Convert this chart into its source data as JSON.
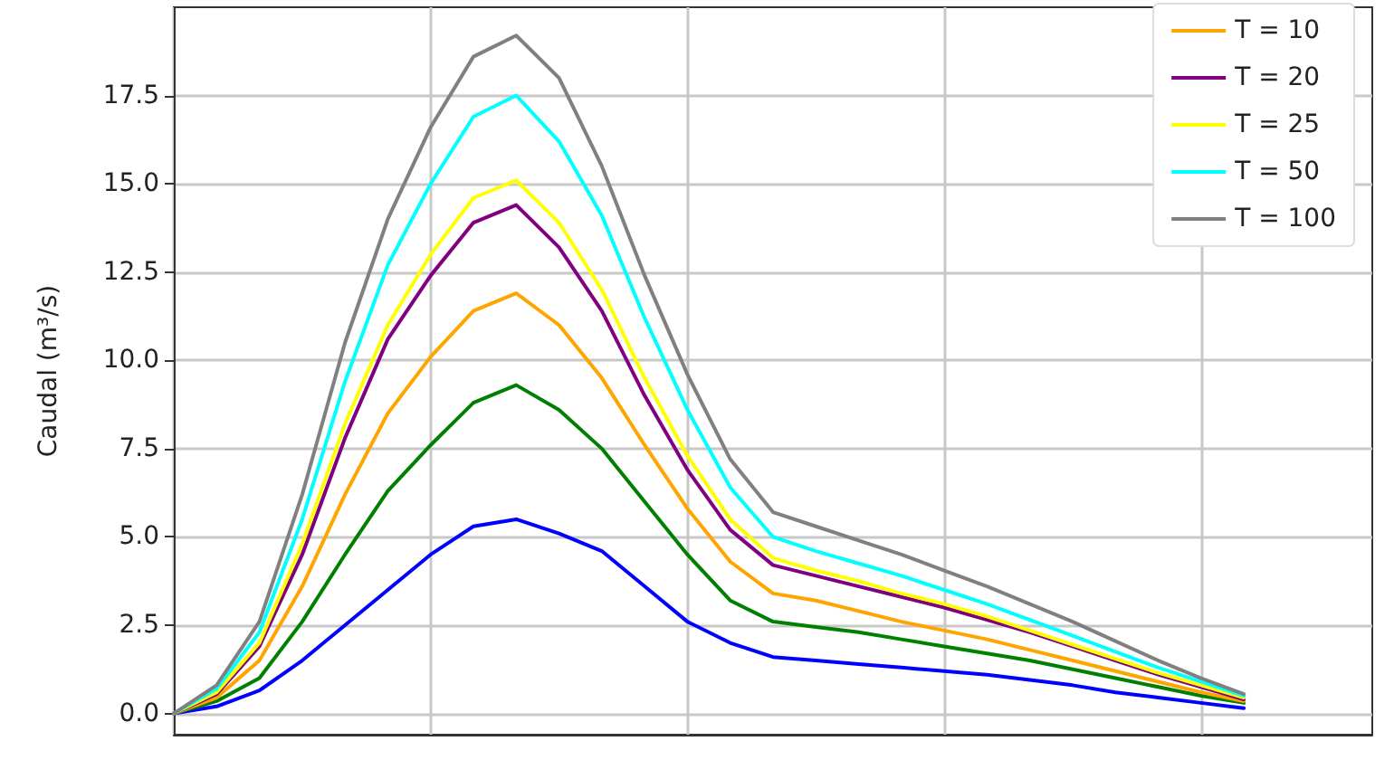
{
  "chart_data": {
    "type": "line",
    "ylabel": "Caudal (m³/s)",
    "categories": [
      null,
      null,
      null,
      null,
      null,
      null,
      null,
      null,
      null,
      null,
      null,
      null,
      null,
      null,
      null,
      null,
      null,
      null,
      null,
      null,
      null,
      null,
      null,
      null,
      null,
      null,
      null,
      null,
      null
    ],
    "series": [
      {
        "color": "#0000ff",
        "values": [
          0,
          0.2,
          0.65,
          1.5,
          2.5,
          3.5,
          4.5,
          5.3,
          5.5,
          5.1,
          4.6,
          3.6,
          2.6,
          2.0,
          1.6,
          1.5,
          1.4,
          1.3,
          1.2,
          1.1,
          0.95,
          0.8,
          0.6,
          0.45,
          0.3,
          0.15,
          null,
          null,
          null
        ]
      },
      {
        "color": "#008000",
        "values": [
          0,
          0.35,
          1.0,
          2.6,
          4.5,
          6.3,
          7.6,
          8.8,
          9.3,
          8.6,
          7.5,
          6.0,
          4.5,
          3.2,
          2.6,
          2.45,
          2.3,
          2.1,
          1.9,
          1.7,
          1.5,
          1.25,
          1.0,
          0.75,
          0.5,
          0.3,
          null,
          null,
          null
        ]
      },
      {
        "name": "T = 10",
        "color": "#ffa500",
        "values": [
          0,
          0.45,
          1.5,
          3.6,
          6.2,
          8.5,
          10.1,
          11.4,
          11.9,
          11.0,
          9.5,
          7.6,
          5.8,
          4.3,
          3.4,
          3.2,
          2.9,
          2.6,
          2.35,
          2.1,
          1.8,
          1.5,
          1.2,
          0.9,
          0.6,
          0.35,
          null,
          null,
          null
        ]
      },
      {
        "name": "T = 20",
        "color": "#800080",
        "values": [
          0,
          0.55,
          1.9,
          4.5,
          7.8,
          10.6,
          12.4,
          13.9,
          14.4,
          13.2,
          11.4,
          9.0,
          6.9,
          5.2,
          4.2,
          3.9,
          3.6,
          3.3,
          3.0,
          2.65,
          2.3,
          1.9,
          1.5,
          1.1,
          0.75,
          0.4,
          null,
          null,
          null
        ]
      },
      {
        "name": "T = 25",
        "color": "#ffff00",
        "values": [
          0,
          0.6,
          2.0,
          4.8,
          8.2,
          11.0,
          13.0,
          14.6,
          15.1,
          13.9,
          12.0,
          9.5,
          7.3,
          5.5,
          4.4,
          4.05,
          3.75,
          3.4,
          3.1,
          2.75,
          2.35,
          1.95,
          1.55,
          1.15,
          0.8,
          0.45,
          null,
          null,
          null
        ]
      },
      {
        "name": "T = 50",
        "color": "#00ffff",
        "values": [
          0,
          0.7,
          2.3,
          5.5,
          9.4,
          12.7,
          15.0,
          16.9,
          17.5,
          16.2,
          14.1,
          11.2,
          8.6,
          6.4,
          5.0,
          4.6,
          4.25,
          3.9,
          3.5,
          3.1,
          2.65,
          2.2,
          1.75,
          1.3,
          0.9,
          0.5,
          null,
          null,
          null
        ]
      },
      {
        "name": "T = 100",
        "color": "#808080",
        "values": [
          0,
          0.8,
          2.6,
          6.2,
          10.5,
          14.0,
          16.6,
          18.6,
          19.2,
          18.0,
          15.5,
          12.4,
          9.6,
          7.2,
          5.7,
          5.3,
          4.9,
          4.5,
          4.05,
          3.6,
          3.1,
          2.6,
          2.05,
          1.5,
          1.0,
          0.55,
          null,
          null,
          null
        ]
      }
    ],
    "ylim": [
      -0.6,
      20
    ],
    "yticks": [
      {
        "value": 0,
        "label": "0.0"
      },
      2.5,
      {
        "value": 5,
        "label": "5.0"
      },
      7.5,
      {
        "value": 10,
        "label": "10.0"
      },
      12.5,
      {
        "value": 15,
        "label": "15.0"
      },
      17.5
    ],
    "tick_labels": "y",
    "grid": true,
    "legend": "top right",
    "marker": "none",
    "line_style": "solid"
  }
}
